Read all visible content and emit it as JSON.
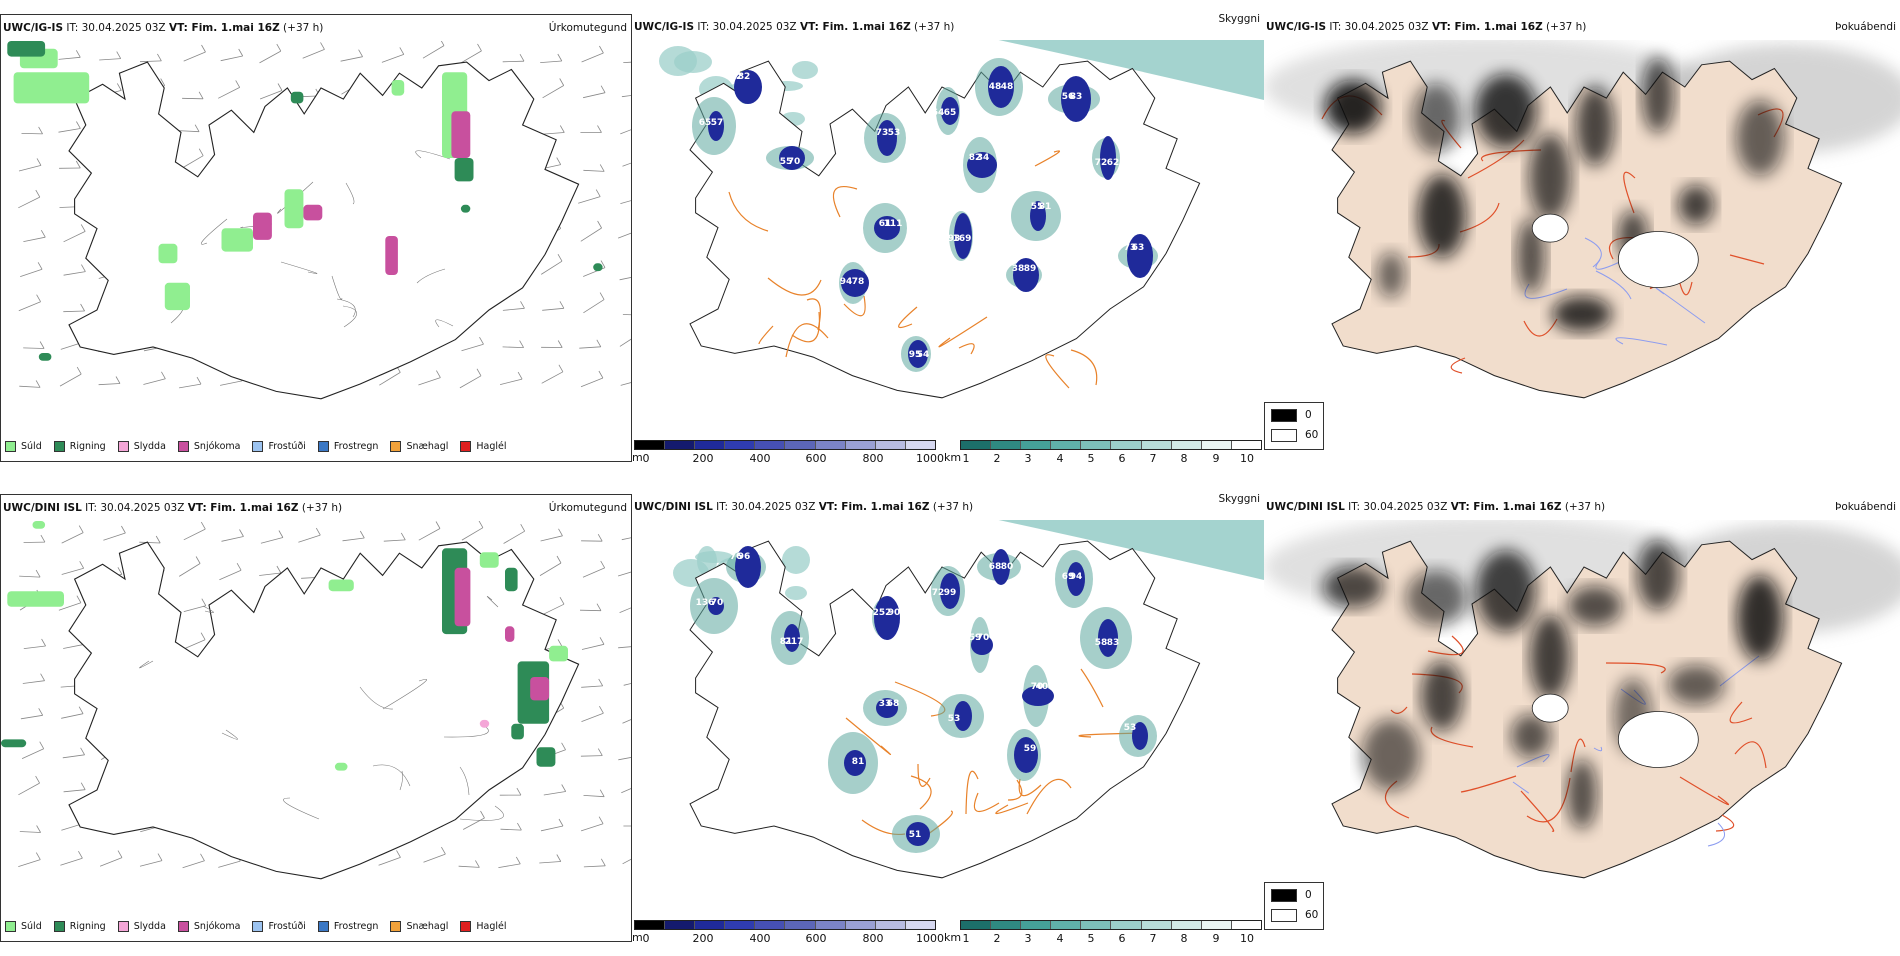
{
  "rows": [
    {
      "model": "UWC/IG-IS",
      "it_label": "IT:",
      "it_value": "30.04.2025 03Z",
      "vt_label": "VT: Fim. 1.mai 16Z",
      "lead": "(+37 h)"
    },
    {
      "model": "UWC/DINI ISL",
      "it_label": "IT:",
      "it_value": "30.04.2025 03Z",
      "vt_label": "VT: Fim. 1.mai 16Z",
      "lead": "(+37 h)"
    }
  ],
  "panels": {
    "precip_title": "Úrkomutegund",
    "cloud_title": "Skyggni",
    "fog_title": "Þokuábendi"
  },
  "precip_legend": [
    {
      "label": "Súld",
      "color": "#90ee90"
    },
    {
      "label": "Rigning",
      "color": "#2e8b57"
    },
    {
      "label": "Slydda",
      "color": "#f4a6d7"
    },
    {
      "label": "Snjókoma",
      "color": "#c8509e"
    },
    {
      "label": "Frostúði",
      "color": "#9cc3f0"
    },
    {
      "label": "Frostregn",
      "color": "#3b78c4"
    },
    {
      "label": "Snæhagl",
      "color": "#f2a23a"
    },
    {
      "label": "Haglél",
      "color": "#e02020"
    }
  ],
  "cloudbase_bar": {
    "unit": "m",
    "ticks": [
      "0",
      "200",
      "400",
      "600",
      "800",
      "1000"
    ],
    "colors": [
      "#000000",
      "#141a6e",
      "#1f2a9a",
      "#2f3cb0",
      "#4650b4",
      "#5c66b8",
      "#7c84c6",
      "#9aa0d4",
      "#b8bce2",
      "#d6d8f0"
    ]
  },
  "visibility_bar": {
    "unit": "km",
    "ticks": [
      "1",
      "2",
      "3",
      "4",
      "5",
      "6",
      "7",
      "8",
      "9",
      "10"
    ],
    "colors": [
      "#1c6f6a",
      "#2f8a82",
      "#45a098",
      "#60b1aa",
      "#7ec0ba",
      "#9ccfca",
      "#b8ddd9",
      "#d2eae7",
      "#e9f5f3",
      "#ffffff"
    ]
  },
  "fog_legend": [
    {
      "label": "0",
      "color": "#000000"
    },
    {
      "label": "60",
      "color": "#ffffff"
    }
  ],
  "cloud_labels_top": [
    "72",
    "57",
    "55",
    "53",
    "65",
    "82",
    "48",
    "55",
    "56",
    "62",
    "61",
    "93",
    "89",
    "95",
    "73",
    "78",
    "82",
    "65",
    "70",
    "73",
    "64",
    "34",
    "48",
    "81",
    "83",
    "72",
    "111",
    "169",
    "38",
    "54",
    "63",
    "94"
  ],
  "cloud_labels_bottom": [
    "76",
    "70",
    "81",
    "90",
    "99",
    "59",
    "80",
    "70",
    "69",
    "83",
    "33",
    "53",
    "59",
    "51",
    "53",
    "81",
    "96",
    "136",
    "217",
    "252",
    "72",
    "70",
    "68",
    "407",
    "94",
    "58",
    "68"
  ]
}
